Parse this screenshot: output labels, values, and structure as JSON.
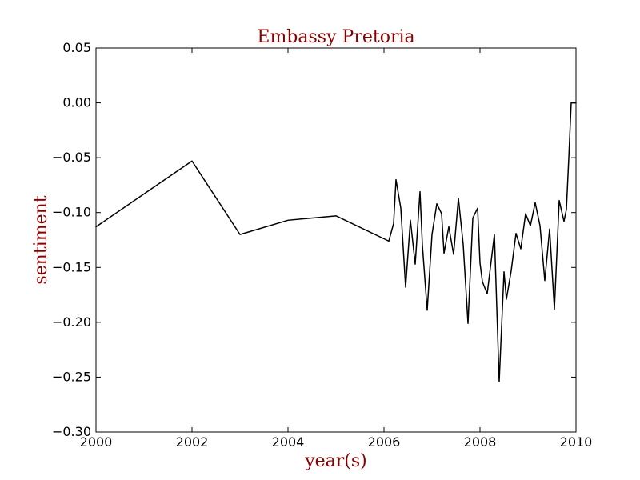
{
  "chart_data": {
    "type": "line",
    "title": "Embassy Pretoria",
    "xlabel": "year(s)",
    "ylabel": "sentiment",
    "xlim": [
      2000,
      2010
    ],
    "ylim": [
      -0.3,
      0.05
    ],
    "x_ticks": [
      2000,
      2002,
      2004,
      2006,
      2008,
      2010
    ],
    "x_tick_labels": [
      "2000",
      "2002",
      "2004",
      "2006",
      "2008",
      "2010"
    ],
    "y_ticks": [
      0.05,
      0.0,
      -0.05,
      -0.1,
      -0.15,
      -0.2,
      -0.25,
      -0.3
    ],
    "y_tick_labels": [
      "0.05",
      "0.00",
      "−0.05",
      "−0.10",
      "−0.15",
      "−0.20",
      "−0.25",
      "−0.30"
    ],
    "grid": false,
    "colors": {
      "line": "#000000",
      "title": "#8b0000",
      "axis_labels": "#8b0000"
    },
    "series": [
      {
        "x": [
          2000.0,
          2002.0,
          2003.0,
          2004.0,
          2005.0,
          2006.1,
          2006.2,
          2006.25,
          2006.35,
          2006.45,
          2006.55,
          2006.65,
          2006.75,
          2006.8,
          2006.9,
          2007.0,
          2007.1,
          2007.2,
          2007.25,
          2007.35,
          2007.45,
          2007.55,
          2007.65,
          2007.75,
          2007.85,
          2007.95,
          2008.0,
          2008.05,
          2008.15,
          2008.3,
          2008.4,
          2008.5,
          2008.55,
          2008.65,
          2008.75,
          2008.85,
          2008.95,
          2009.05,
          2009.15,
          2009.25,
          2009.35,
          2009.45,
          2009.55,
          2009.65,
          2009.75,
          2009.8,
          2009.85,
          2009.9,
          2009.95,
          2010.0
        ],
        "values": [
          -0.113,
          -0.053,
          -0.12,
          -0.107,
          -0.103,
          -0.126,
          -0.11,
          -0.07,
          -0.096,
          -0.168,
          -0.107,
          -0.147,
          -0.081,
          -0.13,
          -0.189,
          -0.12,
          -0.092,
          -0.101,
          -0.137,
          -0.113,
          -0.138,
          -0.087,
          -0.129,
          -0.201,
          -0.105,
          -0.096,
          -0.146,
          -0.163,
          -0.174,
          -0.12,
          -0.254,
          -0.154,
          -0.179,
          -0.153,
          -0.119,
          -0.133,
          -0.101,
          -0.112,
          -0.091,
          -0.112,
          -0.162,
          -0.115,
          -0.188,
          -0.089,
          -0.108,
          -0.097,
          -0.05,
          0.0,
          0.0,
          0.0
        ]
      }
    ]
  }
}
